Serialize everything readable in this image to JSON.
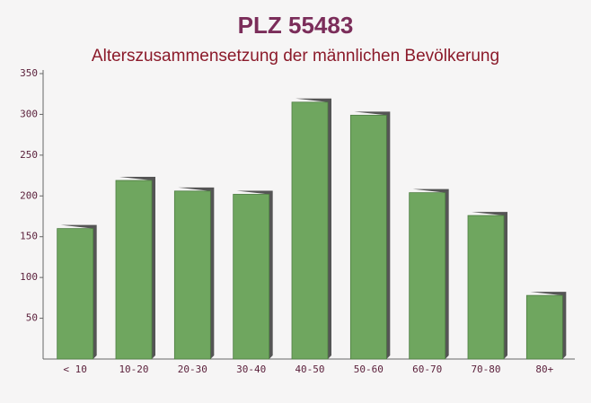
{
  "chart_data": {
    "type": "bar",
    "title": "PLZ 55483",
    "subtitle": "Alterszusammensetzung der männlichen Bevölkerung",
    "categories": [
      "< 10",
      "10-20",
      "20-30",
      "30-40",
      "40-50",
      "50-60",
      "60-70",
      "70-80",
      "80+"
    ],
    "values": [
      160,
      219,
      206,
      202,
      315,
      299,
      204,
      176,
      78
    ],
    "color": "#6fa65f",
    "ylim": [
      0,
      350
    ],
    "yticks": [
      50,
      100,
      150,
      200,
      250,
      300,
      350
    ],
    "grid": false
  }
}
